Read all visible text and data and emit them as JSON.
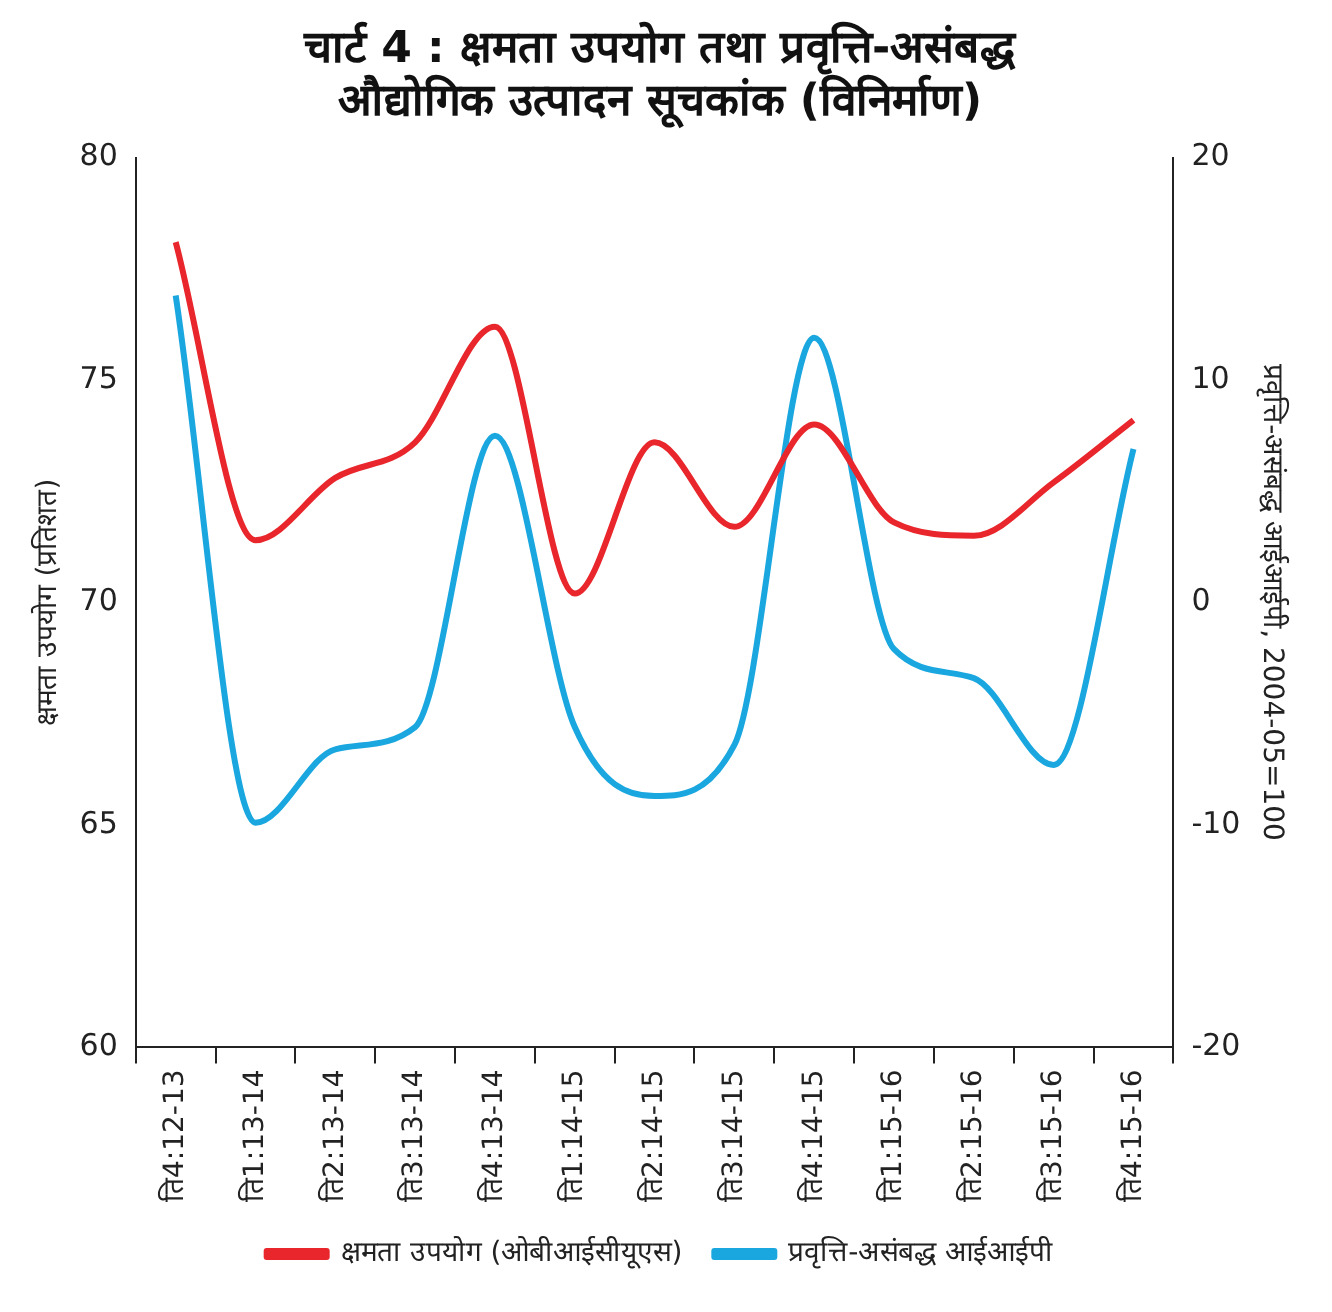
{
  "chart_data": {
    "type": "line",
    "title": "चार्ट 4 : क्षमता उपयोग तथा प्रवृत्ति-असंबद्ध\nऔद्योगिक उत्पादन सूचकांक (विनिर्माण)",
    "ylabel": "क्षमता उपयोग (प्रतिशत)",
    "y2label": "प्रवृत्ति-असंबद्ध आईआईपी, 2004-05=100",
    "categories": [
      "ति4:12-13",
      "ति1:13-14",
      "ति2:13-14",
      "ति3:13-14",
      "ति4:13-14",
      "ति1:14-15",
      "ति2:14-15",
      "ति3:14-15",
      "ति4:14-15",
      "ति1:15-16",
      "ति2:15-16",
      "ति3:15-16",
      "ति4:15-16"
    ],
    "series": [
      {
        "name": "क्षमता उपयोग (ओबीआईसीयूएस)",
        "color": "#e8262b",
        "values": [
          78.1,
          71.4,
          72.8,
          73.6,
          76.2,
          70.2,
          73.6,
          71.7,
          74.0,
          71.8,
          71.5,
          72.7,
          74.1
        ]
      },
      {
        "name": "प्रवृत्ति-असंबद्ध आईआईपी",
        "color": "#1aa7e0",
        "axis": "y2",
        "values": [
          13.8,
          -9.9,
          -6.6,
          -5.6,
          7.5,
          -5.6,
          -8.7,
          -6.4,
          11.9,
          -2.1,
          -3.4,
          -7.3,
          6.9
        ]
      }
    ],
    "ylim": [
      60,
      80
    ],
    "yticks": [
      60,
      65,
      70,
      75,
      80
    ],
    "y2lim": [
      -20,
      20
    ],
    "y2ticks": [
      -20,
      -10,
      0,
      10,
      20
    ],
    "grid": false,
    "legend": "bottom",
    "marker": "none",
    "line_style": "solid"
  }
}
